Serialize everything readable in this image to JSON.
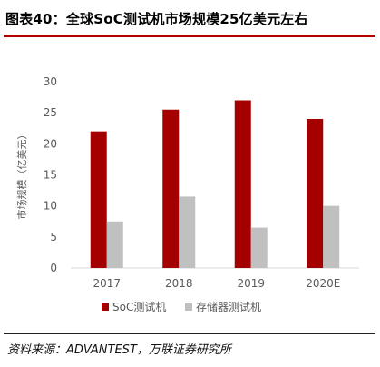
{
  "title": "图表40：全球SoC测试机市场规模25亿美元左右",
  "source": "资料来源：ADVANTEST，万联证券研究所",
  "colors": {
    "rule": "#b30000",
    "soc": "#a50000",
    "storage": "#c0c0c0",
    "axis_text": "#595959",
    "gridline": "#d9d9d9"
  },
  "chart_data": {
    "type": "bar",
    "categories": [
      "2017",
      "2018",
      "2019",
      "2020E"
    ],
    "series": [
      {
        "name": "SoC测试机",
        "values": [
          22,
          25.5,
          27,
          24
        ],
        "color": "#a50000"
      },
      {
        "name": "存储器测试机",
        "values": [
          7.5,
          11.5,
          6.5,
          10
        ],
        "color": "#c0c0c0"
      }
    ],
    "ylabel": "市场规模（亿美元）",
    "xlabel": "",
    "ylim": [
      0,
      30
    ],
    "yticks": [
      "0",
      "5",
      "10",
      "15",
      "20",
      "25",
      "30"
    ],
    "grid": false,
    "legend": "bottom"
  }
}
